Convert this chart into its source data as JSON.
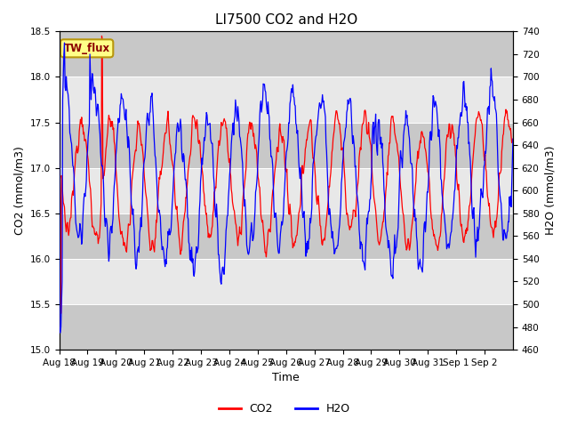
{
  "title": "LI7500 CO2 and H2O",
  "xlabel": "Time",
  "ylabel_left": "CO2 (mmol/m3)",
  "ylabel_right": "H2O (mmol/m3)",
  "co2_ylim": [
    15.0,
    18.5
  ],
  "h2o_ylim": [
    460,
    740
  ],
  "co2_yticks": [
    15.0,
    15.5,
    16.0,
    16.5,
    17.0,
    17.5,
    18.0,
    18.5
  ],
  "h2o_yticks": [
    460,
    480,
    500,
    520,
    540,
    560,
    580,
    600,
    620,
    640,
    660,
    680,
    700,
    720,
    740
  ],
  "co2_color": "#ff0000",
  "h2o_color": "#0000ff",
  "plot_bg_color": "#dcdcdc",
  "band_color_light": "#e8e8e8",
  "band_color_dark": "#c8c8c8",
  "legend_label_co2": "CO2",
  "legend_label_h2o": "H2O",
  "annotation_text": "TW_flux",
  "annotation_facecolor": "#ffff88",
  "annotation_edgecolor": "#b8960c",
  "annotation_textcolor": "#8b0000",
  "x_tick_labels": [
    "Aug 18",
    "Aug 19",
    "Aug 20",
    "Aug 21",
    "Aug 22",
    "Aug 23",
    "Aug 24",
    "Aug 25",
    "Aug 26",
    "Aug 27",
    "Aug 28",
    "Aug 29",
    "Aug 30",
    "Aug 31",
    "Sep 1",
    "Sep 2"
  ],
  "title_fontsize": 11,
  "axis_label_fontsize": 9,
  "tick_label_fontsize": 7.5
}
